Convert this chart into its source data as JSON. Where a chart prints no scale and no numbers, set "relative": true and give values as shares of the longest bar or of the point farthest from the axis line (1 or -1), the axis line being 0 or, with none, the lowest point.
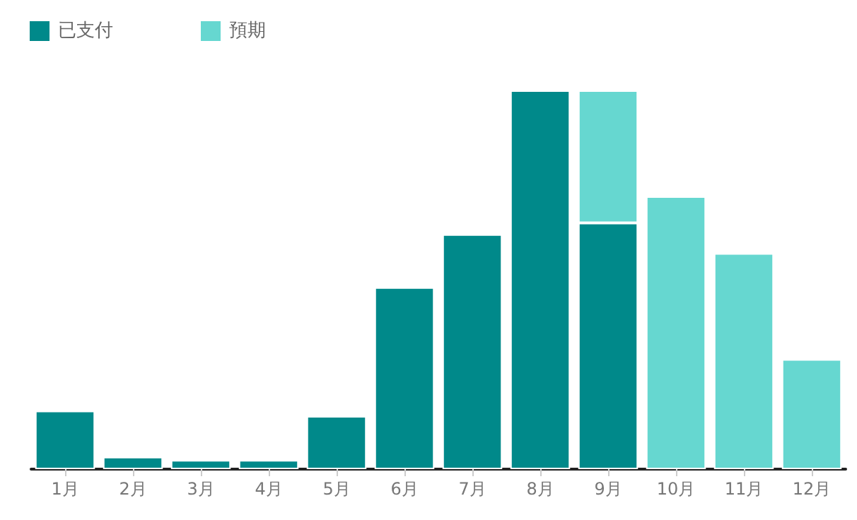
{
  "chart_data": {
    "type": "bar",
    "relative": true,
    "stacked": true,
    "legend": "top left",
    "categories": [
      "1月",
      "2月",
      "3月",
      "4月",
      "5月",
      "6月",
      "7月",
      "8月",
      "9月",
      "10月",
      "11月",
      "12月"
    ],
    "series": [
      {
        "name": "已支付",
        "color": "#00898a",
        "values": [
          0.154,
          0.032,
          0.024,
          0.024,
          0.14,
          0.48,
          0.62,
          1,
          0.65,
          null,
          null,
          null
        ]
      },
      {
        "name": "預期",
        "color": "#66d7d0",
        "values": [
          null,
          null,
          null,
          null,
          null,
          null,
          null,
          null,
          0.35,
          0.72,
          0.57,
          0.29
        ]
      }
    ]
  }
}
